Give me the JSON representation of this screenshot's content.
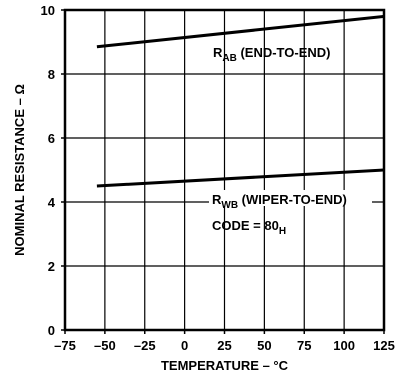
{
  "chart_data": {
    "type": "line",
    "xlabel": "TEMPERATURE – °C",
    "ylabel": "NOMINAL RESISTANCE – Ω",
    "xlim": [
      -75,
      125
    ],
    "ylim": [
      0,
      10
    ],
    "x_ticks": [
      -75,
      -50,
      -25,
      0,
      25,
      50,
      75,
      100,
      125
    ],
    "y_ticks": [
      0,
      2,
      4,
      6,
      8,
      10
    ],
    "x_tick_labels": [
      "–75",
      "–50",
      "–25",
      "0",
      "25",
      "50",
      "75",
      "100",
      "125"
    ],
    "y_tick_labels": [
      "0",
      "2",
      "4",
      "6",
      "8",
      "10"
    ],
    "grid": true,
    "series": [
      {
        "x": [
          -55,
          125
        ],
        "values": [
          8.85,
          9.8
        ]
      },
      {
        "x": [
          -55,
          125
        ],
        "values": [
          4.5,
          5.0
        ]
      }
    ],
    "annotations": [
      {
        "main": "R",
        "sub": "AB",
        "rest": " (END-TO-END)"
      },
      {
        "main": "R",
        "sub": "WB",
        "rest": " (WIPER-TO-END)"
      },
      {
        "main": "CODE = 80",
        "sub": "H",
        "rest": ""
      }
    ]
  }
}
